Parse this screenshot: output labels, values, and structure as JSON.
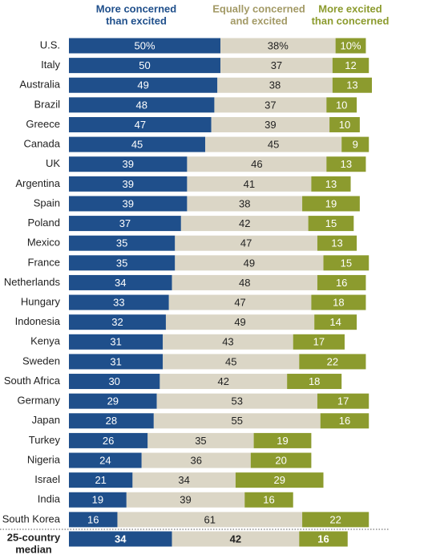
{
  "chart_data": {
    "type": "stacked-bar-horizontal",
    "categories": [
      "U.S.",
      "Italy",
      "Australia",
      "Brazil",
      "Greece",
      "Canada",
      "UK",
      "Argentina",
      "Spain",
      "Poland",
      "Mexico",
      "France",
      "Netherlands",
      "Hungary",
      "Indonesia",
      "Kenya",
      "Sweden",
      "South Africa",
      "Germany",
      "Japan",
      "Turkey",
      "Nigeria",
      "Israel",
      "India",
      "South Korea"
    ],
    "series": [
      {
        "name": "More concerned\nthan excited",
        "color": "#1f4f8b",
        "header_color": "#1f4f8b",
        "label_color": "#ffffff",
        "values": [
          50,
          50,
          49,
          48,
          47,
          45,
          39,
          39,
          39,
          37,
          35,
          35,
          34,
          33,
          32,
          31,
          31,
          30,
          29,
          28,
          26,
          24,
          21,
          19,
          16
        ],
        "value_labels": [
          "50%",
          null,
          null,
          null,
          null,
          null,
          null,
          null,
          null,
          null,
          null,
          null,
          null,
          null,
          null,
          null,
          null,
          null,
          null,
          null,
          null,
          null,
          null,
          null,
          null
        ]
      },
      {
        "name": "Equally concerned\nand excited",
        "color": "#dbd6c6",
        "header_color": "#a39a66",
        "label_color": "#222222",
        "values": [
          38,
          37,
          38,
          37,
          39,
          45,
          46,
          41,
          38,
          42,
          47,
          49,
          48,
          47,
          49,
          43,
          45,
          42,
          53,
          55,
          35,
          36,
          34,
          39,
          61
        ],
        "value_labels": [
          "38%",
          null,
          null,
          null,
          null,
          null,
          null,
          null,
          null,
          null,
          null,
          null,
          null,
          null,
          null,
          null,
          null,
          null,
          null,
          null,
          null,
          null,
          null,
          null,
          null
        ]
      },
      {
        "name": "More excited\nthan concerned",
        "color": "#8c9b2e",
        "header_color": "#8c9b2e",
        "label_color": "#ffffff",
        "values": [
          10,
          12,
          13,
          10,
          10,
          9,
          13,
          13,
          19,
          15,
          13,
          15,
          16,
          18,
          14,
          17,
          22,
          18,
          17,
          16,
          19,
          20,
          29,
          16,
          22
        ],
        "value_labels": [
          "10%",
          null,
          null,
          null,
          null,
          null,
          null,
          null,
          null,
          null,
          null,
          null,
          null,
          null,
          null,
          null,
          null,
          null,
          null,
          null,
          null,
          null,
          null,
          null,
          null
        ]
      }
    ],
    "median": {
      "label": "25-country\nmedian",
      "values": [
        34,
        42,
        16
      ]
    }
  }
}
